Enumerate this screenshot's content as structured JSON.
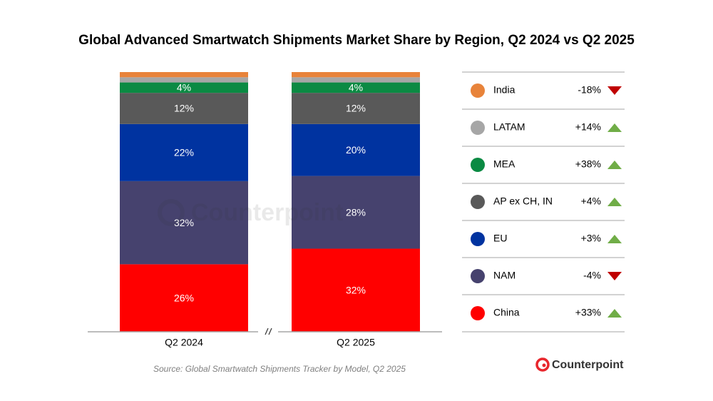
{
  "chart_data": {
    "type": "stacked_bar",
    "title": "Global Advanced Smartwatch Shipments Market Share by Region, Q2 2024 vs Q2 2025",
    "categories": [
      "Q2 2024",
      "Q2 2025"
    ],
    "ylim": [
      0,
      100
    ],
    "series": [
      {
        "name": "India",
        "color": "#e8833a",
        "values": [
          2,
          2
        ],
        "value_labels": [
          null,
          null
        ],
        "change": "-18%"
      },
      {
        "name": "LATAM",
        "color": "#a6a6a6",
        "values": [
          2,
          2
        ],
        "value_labels": [
          null,
          null
        ],
        "change": "+14%"
      },
      {
        "name": "MEA",
        "color": "#0b8a43",
        "values": [
          4,
          4
        ],
        "value_labels": [
          "4%",
          "4%"
        ],
        "change": "+38%"
      },
      {
        "name": "AP ex CH, IN",
        "color": "#595959",
        "values": [
          12,
          12
        ],
        "value_labels": [
          "12%",
          "12%"
        ],
        "change": "+4%"
      },
      {
        "name": "EU",
        "color": "#0033a0",
        "values": [
          22,
          20
        ],
        "value_labels": [
          "22%",
          "20%"
        ],
        "change": "+3%"
      },
      {
        "name": "NAM",
        "color": "#46426e",
        "values": [
          32,
          28
        ],
        "value_labels": [
          "32%",
          "28%"
        ],
        "change": "-4%"
      },
      {
        "name": "China",
        "color": "#ff0000",
        "values": [
          26,
          32
        ],
        "value_labels": [
          "26%",
          "32%"
        ],
        "change": "+33%"
      }
    ],
    "source": "Source: Global Smartwatch Shipments Tracker by Model, Q2 2025",
    "logo": "Counterpoint",
    "watermark": "Counterpoint"
  }
}
